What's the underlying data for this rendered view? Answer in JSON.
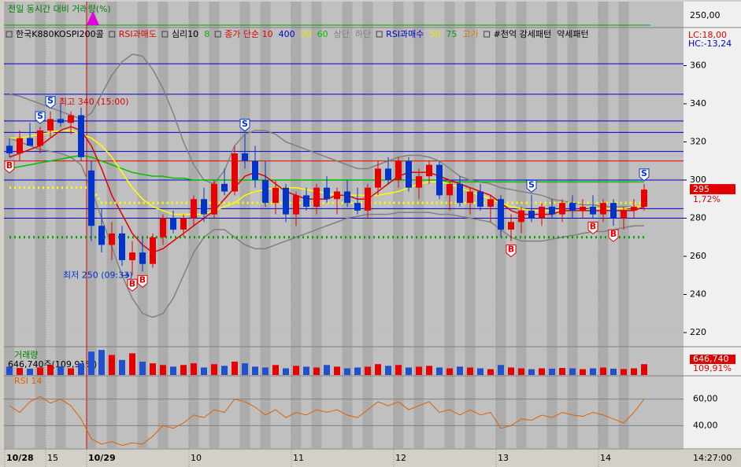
{
  "chart_data": {
    "type": "candlestick",
    "top_panel": {
      "title": "전일 동시간 대비 거래량(%)",
      "yticks": [
        {
          "value": 250,
          "label": "250,00"
        }
      ]
    },
    "legend": [
      {
        "text": "한국K880KOSPI200콜",
        "color": "#000000",
        "box": true
      },
      {
        "text": "RSI과매도",
        "color": "#e00000",
        "box": true
      },
      {
        "text": "심리10",
        "color": "#000000",
        "box": true
      },
      {
        "text": "8",
        "color": "#00b000",
        "box": false
      },
      {
        "text": "종가 단순 10",
        "color": "#e00000",
        "box": true
      },
      {
        "text": "400",
        "color": "#0000cc",
        "box": false
      },
      {
        "text": "20",
        "color": "#e8e800",
        "box": false
      },
      {
        "text": "60",
        "color": "#00c000",
        "box": false
      },
      {
        "text": "상단",
        "color": "#808080",
        "box": false
      },
      {
        "text": "하단",
        "color": "#808080",
        "box": false
      },
      {
        "text": "RSI과매수",
        "color": "#0000cc",
        "box": true
      },
      {
        "text": "50",
        "color": "#e8e800",
        "box": false
      },
      {
        "text": "75",
        "color": "#00a000",
        "box": false
      },
      {
        "text": "고가",
        "color": "#c88000",
        "box": false
      },
      {
        "text": "#천억 강세패턴",
        "color": "#000000",
        "box": true
      },
      {
        "text": "약세패턴",
        "color": "#000000",
        "box": false
      }
    ],
    "lc_label": "LC:18,00",
    "hc_label": "HC:-13,24",
    "max_label": "최고 340 (15:00)",
    "min_label": "최저 250 (09:33)",
    "change_label": "1,72%",
    "time_label": "14:27:00",
    "ylim": [
      213,
      380
    ],
    "yticks": [
      220,
      240,
      260,
      280,
      300,
      320,
      340,
      360
    ],
    "categories": [
      "10/28",
      null,
      null,
      null,
      "15",
      null,
      null,
      null,
      "10/29",
      null,
      null,
      null,
      null,
      null,
      null,
      null,
      null,
      null,
      "10",
      null,
      null,
      null,
      null,
      null,
      null,
      null,
      null,
      null,
      "11",
      null,
      null,
      null,
      null,
      null,
      null,
      null,
      null,
      null,
      "12",
      null,
      null,
      null,
      null,
      null,
      null,
      null,
      null,
      null,
      "13",
      null,
      null,
      null,
      null,
      null,
      null,
      null,
      null,
      null,
      "14",
      null,
      null,
      null,
      null
    ],
    "candles": [
      [
        318,
        322,
        312,
        314
      ],
      [
        314,
        326,
        310,
        322
      ],
      [
        322,
        330,
        318,
        318
      ],
      [
        318,
        328,
        314,
        326
      ],
      [
        326,
        336,
        322,
        332
      ],
      [
        332,
        340,
        328,
        330
      ],
      [
        330,
        336,
        324,
        334
      ],
      [
        334,
        338,
        310,
        312
      ],
      [
        305,
        310,
        268,
        276
      ],
      [
        276,
        285,
        262,
        266
      ],
      [
        266,
        278,
        258,
        272
      ],
      [
        272,
        276,
        255,
        258
      ],
      [
        258,
        268,
        250,
        262
      ],
      [
        262,
        270,
        252,
        256
      ],
      [
        256,
        272,
        254,
        270
      ],
      [
        270,
        282,
        266,
        280
      ],
      [
        280,
        284,
        272,
        274
      ],
      [
        274,
        282,
        270,
        280
      ],
      [
        280,
        292,
        276,
        290
      ],
      [
        290,
        296,
        278,
        282
      ],
      [
        282,
        300,
        280,
        298
      ],
      [
        298,
        306,
        292,
        294
      ],
      [
        294,
        318,
        292,
        314
      ],
      [
        314,
        324,
        306,
        310
      ],
      [
        310,
        318,
        296,
        300
      ],
      [
        300,
        310,
        286,
        288
      ],
      [
        288,
        300,
        282,
        296
      ],
      [
        296,
        298,
        278,
        282
      ],
      [
        282,
        294,
        276,
        292
      ],
      [
        292,
        296,
        284,
        286
      ],
      [
        286,
        298,
        282,
        296
      ],
      [
        296,
        302,
        288,
        290
      ],
      [
        290,
        296,
        282,
        294
      ],
      [
        294,
        300,
        286,
        288
      ],
      [
        288,
        296,
        282,
        284
      ],
      [
        284,
        298,
        280,
        296
      ],
      [
        296,
        310,
        292,
        306
      ],
      [
        306,
        312,
        298,
        300
      ],
      [
        300,
        312,
        296,
        310
      ],
      [
        310,
        312,
        294,
        296
      ],
      [
        296,
        306,
        290,
        302
      ],
      [
        302,
        310,
        298,
        308
      ],
      [
        308,
        310,
        290,
        292
      ],
      [
        292,
        300,
        284,
        298
      ],
      [
        298,
        302,
        286,
        288
      ],
      [
        288,
        296,
        282,
        294
      ],
      [
        294,
        298,
        284,
        286
      ],
      [
        286,
        292,
        278,
        290
      ],
      [
        290,
        292,
        270,
        274
      ],
      [
        274,
        282,
        268,
        278
      ],
      [
        278,
        286,
        272,
        284
      ],
      [
        284,
        292,
        278,
        280
      ],
      [
        280,
        288,
        276,
        286
      ],
      [
        286,
        290,
        280,
        282
      ],
      [
        282,
        290,
        278,
        288
      ],
      [
        288,
        292,
        280,
        284
      ],
      [
        284,
        290,
        280,
        286
      ],
      [
        286,
        292,
        280,
        282
      ],
      [
        282,
        290,
        278,
        288
      ],
      [
        288,
        290,
        276,
        280
      ],
      [
        280,
        286,
        274,
        284
      ],
      [
        284,
        290,
        280,
        286
      ],
      [
        286,
        298,
        284,
        295
      ]
    ],
    "hlines": [
      {
        "value": 361,
        "color": "#0000cc"
      },
      {
        "value": 345,
        "color": "#0000cc"
      },
      {
        "value": 331,
        "color": "#0000cc"
      },
      {
        "value": 325,
        "color": "#0000cc"
      },
      {
        "value": 315,
        "color": "#0000cc"
      },
      {
        "value": 310,
        "color": "#dd0000"
      },
      {
        "value": 300,
        "color": "#0000cc"
      },
      {
        "value": 285,
        "color": "#0000cc"
      },
      {
        "value": 280,
        "color": "#0000cc"
      }
    ],
    "overlays": [
      {
        "color": "#808080",
        "dash": false,
        "values": [
          345,
          344,
          342,
          340,
          338,
          336,
          334,
          332,
          335,
          345,
          355,
          362,
          366,
          365,
          358,
          348,
          335,
          320,
          308,
          300,
          298,
          305,
          318,
          324,
          326,
          326,
          324,
          320,
          318,
          316,
          314,
          312,
          310,
          308,
          306,
          306,
          308,
          310,
          312,
          313,
          313,
          312,
          310,
          306,
          302,
          300,
          299,
          298,
          296,
          295,
          294,
          293,
          292,
          290,
          289,
          288,
          287,
          287,
          286,
          286,
          286,
          286,
          286
        ]
      },
      {
        "color": "#808080",
        "dash": false,
        "values": [
          322,
          320,
          318,
          316,
          315,
          314,
          312,
          308,
          295,
          280,
          265,
          250,
          238,
          230,
          228,
          230,
          238,
          250,
          262,
          270,
          274,
          274,
          270,
          266,
          264,
          264,
          266,
          268,
          270,
          272,
          274,
          276,
          278,
          280,
          281,
          282,
          282,
          282,
          283,
          283,
          283,
          283,
          282,
          282,
          281,
          280,
          279,
          278,
          274,
          270,
          268,
          268,
          268,
          269,
          270,
          271,
          272,
          273,
          273,
          274,
          275,
          276,
          276
        ]
      },
      {
        "color": "#00c000",
        "dash": false,
        "values": [
          306,
          307,
          308,
          309,
          310,
          311,
          312,
          313,
          312,
          310,
          308,
          306,
          304,
          303,
          302,
          302,
          301,
          301,
          300,
          300,
          300,
          300,
          300,
          300,
          300,
          300,
          300,
          300,
          300,
          300,
          300,
          300,
          300,
          300,
          300,
          300,
          300,
          300,
          300,
          300,
          300,
          300,
          300,
          299,
          299,
          299,
          299,
          299,
          299,
          299,
          299,
          299,
          299,
          299,
          299,
          299,
          299,
          299,
          299,
          299,
          299,
          299,
          299
        ]
      },
      {
        "color": "#ffff00",
        "dash": false,
        "values": [
          322,
          322,
          323,
          324,
          325,
          326,
          326,
          324,
          322,
          318,
          312,
          304,
          296,
          290,
          286,
          284,
          282,
          282,
          282,
          282,
          284,
          286,
          288,
          292,
          294,
          295,
          296,
          296,
          296,
          295,
          294,
          293,
          292,
          292,
          292,
          292,
          292,
          293,
          294,
          296,
          298,
          299,
          299,
          298,
          296,
          294,
          292,
          290,
          288,
          286,
          285,
          284,
          284,
          284,
          284,
          284,
          284,
          285,
          285,
          285,
          285,
          286,
          286
        ]
      },
      {
        "color": "#e00000",
        "dash": false,
        "values": [
          312,
          314,
          316,
          318,
          322,
          326,
          328,
          326,
          318,
          306,
          292,
          282,
          272,
          266,
          262,
          264,
          268,
          272,
          276,
          280,
          284,
          290,
          296,
          302,
          304,
          302,
          298,
          294,
          292,
          290,
          290,
          290,
          292,
          292,
          290,
          290,
          294,
          298,
          302,
          304,
          304,
          304,
          302,
          300,
          298,
          296,
          294,
          292,
          288,
          284,
          282,
          282,
          282,
          282,
          284,
          284,
          284,
          284,
          284,
          284,
          284,
          284,
          286
        ]
      },
      {
        "color": "#ffff00",
        "dash": true,
        "values": [
          296,
          296,
          296,
          296,
          296,
          296,
          296,
          296,
          296,
          288,
          288,
          288,
          288,
          288,
          288,
          288,
          288,
          288,
          288,
          288,
          288,
          288,
          288,
          288,
          288,
          288,
          288,
          288,
          288,
          288,
          288,
          288,
          288,
          288,
          288,
          288,
          288,
          288,
          288,
          288,
          288,
          288,
          288,
          288,
          288,
          288,
          288,
          288,
          288,
          288,
          288,
          288,
          288,
          288,
          288,
          288,
          288,
          288,
          288,
          288,
          288,
          288,
          288
        ]
      },
      {
        "color": "#00a000",
        "dash": true,
        "values": [
          270,
          270,
          270,
          270,
          270,
          270,
          270,
          270,
          270,
          270,
          270,
          270,
          270,
          270,
          270,
          270,
          270,
          270,
          270,
          270,
          270,
          270,
          270,
          270,
          270,
          270,
          270,
          270,
          270,
          270,
          270,
          270,
          270,
          270,
          270,
          270,
          270,
          270,
          270,
          270,
          270,
          270,
          270,
          270,
          270,
          270,
          270,
          270,
          270,
          270,
          270,
          270,
          270,
          270,
          270,
          270,
          270,
          270,
          270,
          270,
          270,
          270,
          270
        ]
      }
    ],
    "signals": [
      {
        "index": 0,
        "label": "B"
      },
      {
        "index": 3,
        "label": "S"
      },
      {
        "index": 4,
        "label": "S"
      },
      {
        "index": 12,
        "label": "B"
      },
      {
        "index": 13,
        "label": "B"
      },
      {
        "index": 23,
        "label": "S"
      },
      {
        "index": 49,
        "label": "B"
      },
      {
        "index": 51,
        "label": "S"
      },
      {
        "index": 57,
        "label": "B"
      },
      {
        "index": 59,
        "label": "B"
      },
      {
        "index": 62,
        "label": "S"
      }
    ],
    "volume": {
      "title": "거래량",
      "caption": "646,740주(109,91%)",
      "last_label": "646,740",
      "last_pct": "109,91%",
      "ylim": [
        0,
        1600000
      ],
      "values": [
        500000,
        420000,
        380000,
        450000,
        600000,
        520000,
        400000,
        700000,
        1400000,
        1500000,
        1200000,
        900000,
        1300000,
        800000,
        700000,
        600000,
        500000,
        600000,
        700000,
        450000,
        650000,
        550000,
        800000,
        700000,
        500000,
        450000,
        600000,
        400000,
        550000,
        500000,
        450000,
        600000,
        500000,
        400000,
        450000,
        500000,
        650000,
        550000,
        600000,
        450000,
        500000,
        550000,
        450000,
        400000,
        500000,
        450000,
        400000,
        350000,
        600000,
        450000,
        400000,
        350000,
        400000,
        380000,
        420000,
        400000,
        350000,
        400000,
        450000,
        380000,
        360000,
        400000,
        646740
      ]
    },
    "rsi": {
      "title": "RSI 14",
      "ylim": [
        23,
        77
      ],
      "yticks": [
        {
          "value": 40,
          "label": "40,00"
        },
        {
          "value": 60,
          "label": "60,00"
        }
      ],
      "values": [
        55,
        50,
        58,
        62,
        57,
        60,
        55,
        45,
        30,
        26,
        28,
        25,
        27,
        26,
        32,
        40,
        38,
        42,
        48,
        46,
        52,
        50,
        60,
        58,
        54,
        48,
        52,
        46,
        50,
        48,
        52,
        50,
        52,
        48,
        46,
        52,
        58,
        55,
        58,
        52,
        55,
        58,
        50,
        52,
        48,
        52,
        48,
        50,
        38,
        40,
        45,
        44,
        48,
        46,
        50,
        48,
        47,
        50,
        48,
        45,
        42,
        50,
        60
      ]
    }
  }
}
